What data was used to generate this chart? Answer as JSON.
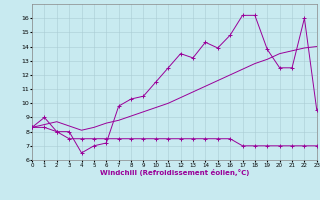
{
  "background_color": "#c8eaf0",
  "line_color": "#990099",
  "ylim": [
    6,
    17
  ],
  "xlim": [
    0,
    23
  ],
  "yticks": [
    6,
    7,
    8,
    9,
    10,
    11,
    12,
    13,
    14,
    15,
    16
  ],
  "xticks": [
    0,
    1,
    2,
    3,
    4,
    5,
    6,
    7,
    8,
    9,
    10,
    11,
    12,
    13,
    14,
    15,
    16,
    17,
    18,
    19,
    20,
    21,
    22,
    23
  ],
  "xlabel": "Windchill (Refroidissement éolien,°C)",
  "grid_color": "#aaccd4",
  "series1_x": [
    0,
    1,
    2,
    3,
    4,
    5,
    6,
    7,
    8,
    9,
    10,
    11,
    12,
    13,
    14,
    15,
    16,
    17,
    18,
    19,
    20,
    21,
    22,
    23
  ],
  "series1_y": [
    8.3,
    9.0,
    8.0,
    8.0,
    6.5,
    7.0,
    7.2,
    9.8,
    10.3,
    10.5,
    11.5,
    12.5,
    13.5,
    13.2,
    14.3,
    13.9,
    14.8,
    16.2,
    16.2,
    13.8,
    12.5,
    12.5,
    16.0,
    9.5
  ],
  "series2_x": [
    0,
    1,
    2,
    3,
    4,
    5,
    6,
    7,
    8,
    9,
    10,
    11,
    12,
    13,
    14,
    15,
    16,
    17,
    18,
    19,
    20,
    21,
    22,
    23
  ],
  "series2_y": [
    8.3,
    8.3,
    8.0,
    7.5,
    7.5,
    7.5,
    7.5,
    7.5,
    7.5,
    7.5,
    7.5,
    7.5,
    7.5,
    7.5,
    7.5,
    7.5,
    7.5,
    7.0,
    7.0,
    7.0,
    7.0,
    7.0,
    7.0,
    7.0
  ],
  "series3_x": [
    0,
    1,
    2,
    3,
    4,
    5,
    6,
    7,
    8,
    9,
    10,
    11,
    12,
    13,
    14,
    15,
    16,
    17,
    18,
    19,
    20,
    21,
    22,
    23
  ],
  "series3_y": [
    8.3,
    8.5,
    8.7,
    8.4,
    8.1,
    8.3,
    8.6,
    8.8,
    9.1,
    9.4,
    9.7,
    10.0,
    10.4,
    10.8,
    11.2,
    11.6,
    12.0,
    12.4,
    12.8,
    13.1,
    13.5,
    13.7,
    13.9,
    14.0
  ]
}
